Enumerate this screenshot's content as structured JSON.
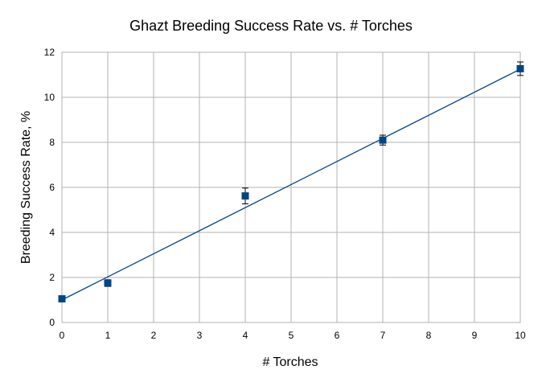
{
  "chart_data": {
    "type": "scatter",
    "title": "Ghazt Breeding Success Rate vs. # Torches",
    "xlabel": "# Torches",
    "ylabel": "Breeding Success Rate, %",
    "xlim": [
      0,
      10
    ],
    "ylim": [
      0,
      12
    ],
    "xticks": [
      "0",
      "1",
      "2",
      "3",
      "4",
      "5",
      "6",
      "7",
      "8",
      "9",
      "10"
    ],
    "yticks": [
      "0",
      "2",
      "4",
      "6",
      "8",
      "10",
      "12"
    ],
    "grid": true,
    "legend": "none",
    "series": [
      {
        "x": [
          0,
          1,
          4,
          7,
          10
        ],
        "y": [
          1.05,
          1.75,
          5.62,
          8.1,
          11.27
        ],
        "yerr": [
          0.1,
          0.15,
          0.35,
          0.22,
          0.3
        ],
        "color": "#004586"
      }
    ],
    "trendline": {
      "type": "linear",
      "slope": 1.025,
      "intercept": 1.0,
      "color": "#004586"
    }
  }
}
